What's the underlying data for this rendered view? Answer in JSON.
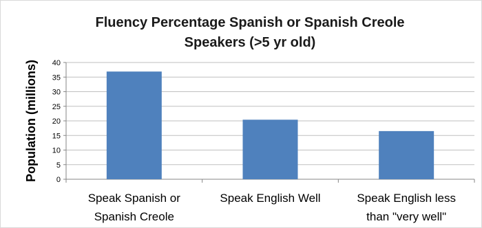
{
  "chart_data": {
    "type": "bar",
    "title_lines": [
      "Fluency Percentage Spanish or Spanish Creole",
      "Speakers (>5 yr old)"
    ],
    "ylabel": "Population (millions)",
    "xlabel": "",
    "ylim": [
      0,
      40
    ],
    "yticks": [
      "0",
      "5",
      "10",
      "15",
      "20",
      "25",
      "30",
      "35",
      "40"
    ],
    "grid": true,
    "legend": "none",
    "categories": [
      [
        "Speak Spanish or",
        "Spanish Creole"
      ],
      [
        "Speak English Well"
      ],
      [
        "Speak English less",
        "than \"very well\""
      ]
    ],
    "values": [
      36.9,
      20.4,
      16.5
    ],
    "bar_color": "#4f81bd",
    "grid_color": "#bfbfbf"
  }
}
